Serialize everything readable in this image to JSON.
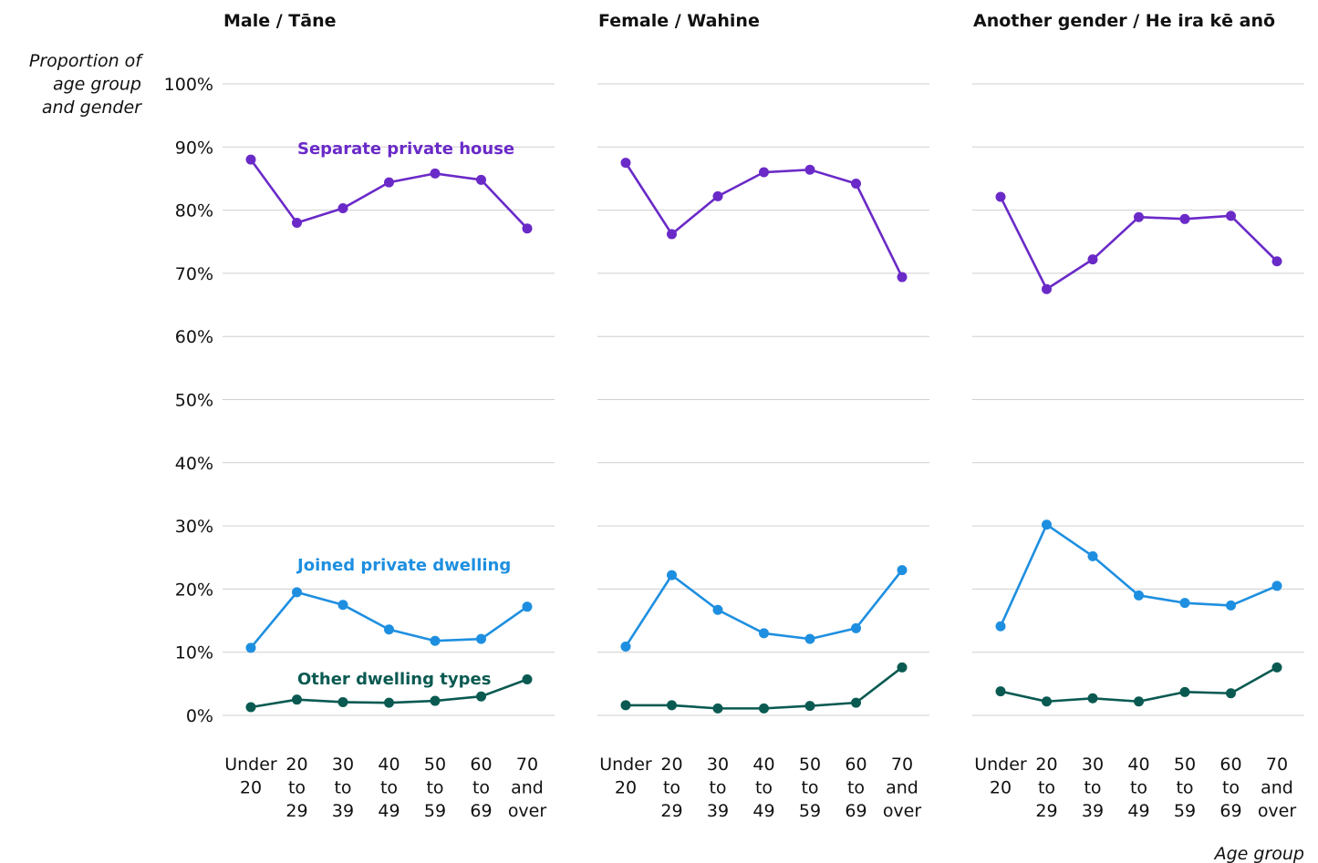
{
  "chart_data": {
    "type": "line",
    "ylabel_lines": [
      "Proportion of",
      "age group",
      "and gender"
    ],
    "xlabel": "Age group",
    "ylim": [
      0,
      100
    ],
    "y_ticks": [
      "0%",
      "10%",
      "20%",
      "30%",
      "40%",
      "50%",
      "60%",
      "70%",
      "80%",
      "90%",
      "100%"
    ],
    "grid": true,
    "categories": [
      [
        "Under",
        "20"
      ],
      [
        "20",
        "to",
        "29"
      ],
      [
        "30",
        "to",
        "39"
      ],
      [
        "40",
        "to",
        "49"
      ],
      [
        "50",
        "to",
        "59"
      ],
      [
        "60",
        "to",
        "69"
      ],
      [
        "70",
        "and",
        "over"
      ]
    ],
    "series_styles": [
      {
        "key": "separate",
        "color": "#6a2ac8"
      },
      {
        "key": "joined",
        "color": "#1e8fe0"
      },
      {
        "key": "other",
        "color": "#0a5a52"
      }
    ],
    "series_labels": {
      "separate": "Separate private house",
      "joined": "Joined private dwelling",
      "other": "Other dwelling types"
    },
    "panels": [
      {
        "title": "Male / Tāne",
        "series": {
          "separate": [
            88,
            78,
            80.3,
            84.4,
            85.8,
            84.8,
            77.1
          ],
          "joined": [
            10.7,
            19.5,
            17.5,
            13.6,
            11.8,
            12.1,
            17.2
          ],
          "other": [
            1.3,
            2.5,
            2.1,
            2.0,
            2.3,
            3.0,
            5.7
          ]
        }
      },
      {
        "title": "Female / Wahine",
        "series": {
          "separate": [
            87.5,
            76.2,
            82.2,
            86.0,
            86.4,
            84.2,
            69.4
          ],
          "joined": [
            10.9,
            22.2,
            16.7,
            13.0,
            12.1,
            13.8,
            23.0
          ],
          "other": [
            1.6,
            1.6,
            1.1,
            1.1,
            1.5,
            2.0,
            7.6
          ]
        }
      },
      {
        "title": "Another gender / He ira kē anō",
        "series": {
          "separate": [
            82.1,
            67.5,
            72.2,
            78.9,
            78.6,
            79.1,
            71.9
          ],
          "joined": [
            14.1,
            30.2,
            25.2,
            19.0,
            17.8,
            17.4,
            20.5
          ],
          "other": [
            3.8,
            2.2,
            2.7,
            2.2,
            3.7,
            3.5,
            7.6
          ]
        }
      }
    ]
  }
}
